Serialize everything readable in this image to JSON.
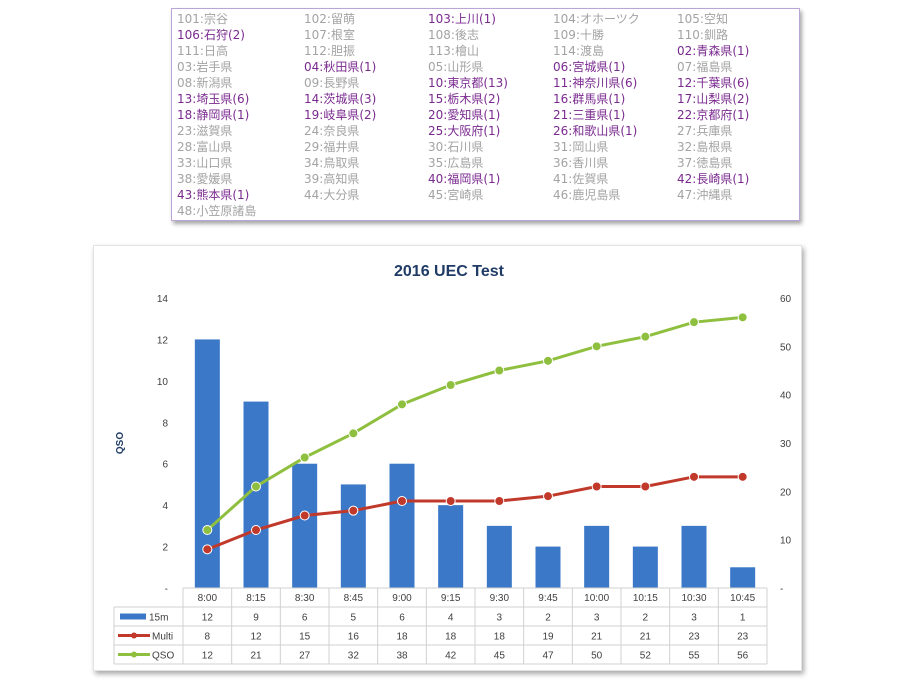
{
  "multiplier_table": {
    "columns": 5,
    "cells": [
      {
        "code": "101",
        "name": "宗谷",
        "count": null
      },
      {
        "code": "102",
        "name": "留萌",
        "count": null
      },
      {
        "code": "103",
        "name": "上川",
        "count": 1
      },
      {
        "code": "104",
        "name": "オホーツク",
        "count": null
      },
      {
        "code": "105",
        "name": "空知",
        "count": null
      },
      {
        "code": "106",
        "name": "石狩",
        "count": 2
      },
      {
        "code": "107",
        "name": "根室",
        "count": null
      },
      {
        "code": "108",
        "name": "後志",
        "count": null
      },
      {
        "code": "109",
        "name": "十勝",
        "count": null
      },
      {
        "code": "110",
        "name": "釧路",
        "count": null
      },
      {
        "code": "111",
        "name": "日高",
        "count": null
      },
      {
        "code": "112",
        "name": "胆振",
        "count": null
      },
      {
        "code": "113",
        "name": "檜山",
        "count": null
      },
      {
        "code": "114",
        "name": "渡島",
        "count": null
      },
      {
        "code": "02",
        "name": "青森県",
        "count": 1
      },
      {
        "code": "03",
        "name": "岩手県",
        "count": null
      },
      {
        "code": "04",
        "name": "秋田県",
        "count": 1
      },
      {
        "code": "05",
        "name": "山形県",
        "count": null
      },
      {
        "code": "06",
        "name": "宮城県",
        "count": 1
      },
      {
        "code": "07",
        "name": "福島県",
        "count": null
      },
      {
        "code": "08",
        "name": "新潟県",
        "count": null
      },
      {
        "code": "09",
        "name": "長野県",
        "count": null
      },
      {
        "code": "10",
        "name": "東京都",
        "count": 13
      },
      {
        "code": "11",
        "name": "神奈川県",
        "count": 6
      },
      {
        "code": "12",
        "name": "千葉県",
        "count": 6
      },
      {
        "code": "13",
        "name": "埼玉県",
        "count": 6
      },
      {
        "code": "14",
        "name": "茨城県",
        "count": 3
      },
      {
        "code": "15",
        "name": "栃木県",
        "count": 2
      },
      {
        "code": "16",
        "name": "群馬県",
        "count": 1
      },
      {
        "code": "17",
        "name": "山梨県",
        "count": 2
      },
      {
        "code": "18",
        "name": "静岡県",
        "count": 1
      },
      {
        "code": "19",
        "name": "岐阜県",
        "count": 2
      },
      {
        "code": "20",
        "name": "愛知県",
        "count": 1
      },
      {
        "code": "21",
        "name": "三重県",
        "count": 1
      },
      {
        "code": "22",
        "name": "京都府",
        "count": 1
      },
      {
        "code": "23",
        "name": "滋賀県",
        "count": null
      },
      {
        "code": "24",
        "name": "奈良県",
        "count": null
      },
      {
        "code": "25",
        "name": "大阪府",
        "count": 1
      },
      {
        "code": "26",
        "name": "和歌山県",
        "count": 1
      },
      {
        "code": "27",
        "name": "兵庫県",
        "count": null
      },
      {
        "code": "28",
        "name": "富山県",
        "count": null
      },
      {
        "code": "29",
        "name": "福井県",
        "count": null
      },
      {
        "code": "30",
        "name": "石川県",
        "count": null
      },
      {
        "code": "31",
        "name": "岡山県",
        "count": null
      },
      {
        "code": "32",
        "name": "島根県",
        "count": null
      },
      {
        "code": "33",
        "name": "山口県",
        "count": null
      },
      {
        "code": "34",
        "name": "鳥取県",
        "count": null
      },
      {
        "code": "35",
        "name": "広島県",
        "count": null
      },
      {
        "code": "36",
        "name": "香川県",
        "count": null
      },
      {
        "code": "37",
        "name": "徳島県",
        "count": null
      },
      {
        "code": "38",
        "name": "愛媛県",
        "count": null
      },
      {
        "code": "39",
        "name": "高知県",
        "count": null
      },
      {
        "code": "40",
        "name": "福岡県",
        "count": 1
      },
      {
        "code": "41",
        "name": "佐賀県",
        "count": null
      },
      {
        "code": "42",
        "name": "長崎県",
        "count": 1
      },
      {
        "code": "43",
        "name": "熊本県",
        "count": 1
      },
      {
        "code": "44",
        "name": "大分県",
        "count": null
      },
      {
        "code": "45",
        "name": "宮崎県",
        "count": null
      },
      {
        "code": "46",
        "name": "鹿児島県",
        "count": null
      },
      {
        "code": "47",
        "name": "沖縄県",
        "count": null
      },
      {
        "code": "48",
        "name": "小笠原諸島",
        "count": null
      }
    ]
  },
  "colors": {
    "bar": "#3b78c8",
    "multi": "#c0392b",
    "qso": "#8fbf3f",
    "title": "#1f3b66",
    "active_text": "#7a2a8f",
    "inactive_text": "#a3a3a3"
  },
  "chart_data": {
    "type": "bar+line",
    "title": "2016 UEC Test",
    "ylabel": "QSO",
    "ylim_left": [
      0,
      14
    ],
    "left_ticks": [
      "-",
      "2",
      "4",
      "6",
      "8",
      "10",
      "12",
      "14"
    ],
    "ylim_right": [
      0,
      60
    ],
    "right_ticks": [
      "-",
      "10",
      "20",
      "30",
      "40",
      "50",
      "60"
    ],
    "categories": [
      "8:00",
      "8:15",
      "8:30",
      "8:45",
      "9:00",
      "9:15",
      "9:30",
      "9:45",
      "10:00",
      "10:15",
      "10:30",
      "10:45"
    ],
    "series": [
      {
        "name": "15m",
        "type": "bar",
        "axis": "left",
        "values": [
          12,
          9,
          6,
          5,
          6,
          4,
          3,
          2,
          3,
          2,
          3,
          1
        ]
      },
      {
        "name": "Multi",
        "type": "line",
        "axis": "right",
        "values": [
          8,
          12,
          15,
          16,
          18,
          18,
          18,
          19,
          21,
          21,
          23,
          23
        ]
      },
      {
        "name": "QSO",
        "type": "line",
        "axis": "right",
        "values": [
          12,
          21,
          27,
          32,
          38,
          42,
          45,
          47,
          50,
          52,
          55,
          56
        ]
      }
    ],
    "data_table": true
  }
}
